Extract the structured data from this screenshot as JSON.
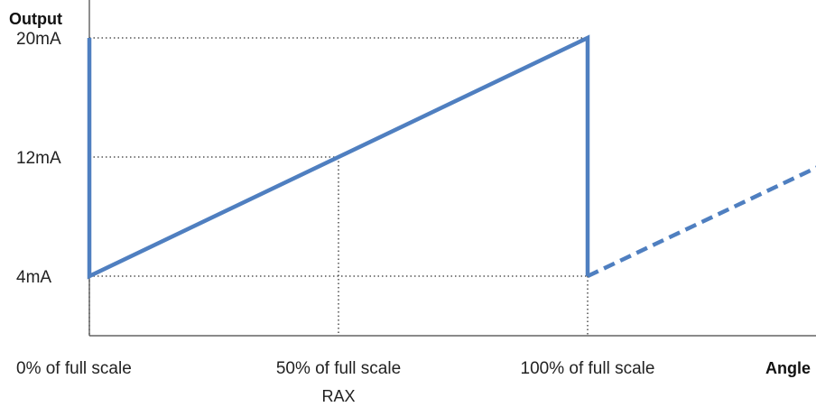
{
  "chart_data": {
    "type": "line",
    "xlabel": "Angle",
    "ylabel": "Output",
    "y_unit": "mA",
    "x_unit": "% of full scale",
    "xlim": [
      0,
      152
    ],
    "ylim": [
      0,
      24.3
    ],
    "y_ticks": [
      {
        "value": 4,
        "label": "4mA"
      },
      {
        "value": 12,
        "label": "12mA"
      },
      {
        "value": 20,
        "label": "20mA"
      }
    ],
    "x_ticks": [
      {
        "value": 0,
        "label": "0% of full scale"
      },
      {
        "value": 50,
        "label": "50% of full scale"
      },
      {
        "value": 100,
        "label": "100% of full scale"
      }
    ],
    "x_annotations": [
      {
        "value": 50,
        "label": "RAX"
      }
    ],
    "series": [
      {
        "style": "solid",
        "color": "#4F7FC0",
        "points": [
          [
            0,
            20
          ],
          [
            0,
            4
          ],
          [
            100,
            20
          ],
          [
            100,
            4
          ]
        ]
      },
      {
        "style": "dashed",
        "color": "#4F7FC0",
        "points": [
          [
            100,
            4
          ],
          [
            146,
            11.3
          ]
        ]
      }
    ],
    "guides": [
      {
        "from": [
          0,
          20
        ],
        "to": [
          100,
          20
        ]
      },
      {
        "from": [
          0,
          12
        ],
        "to": [
          50,
          12
        ]
      },
      {
        "from": [
          0,
          4
        ],
        "to": [
          100,
          4
        ]
      },
      {
        "from": [
          0,
          4
        ],
        "to": [
          0,
          0
        ]
      },
      {
        "from": [
          50,
          12
        ],
        "to": [
          50,
          0
        ]
      },
      {
        "from": [
          100,
          4
        ],
        "to": [
          100,
          0
        ]
      }
    ],
    "grid": false,
    "legend": "none"
  }
}
